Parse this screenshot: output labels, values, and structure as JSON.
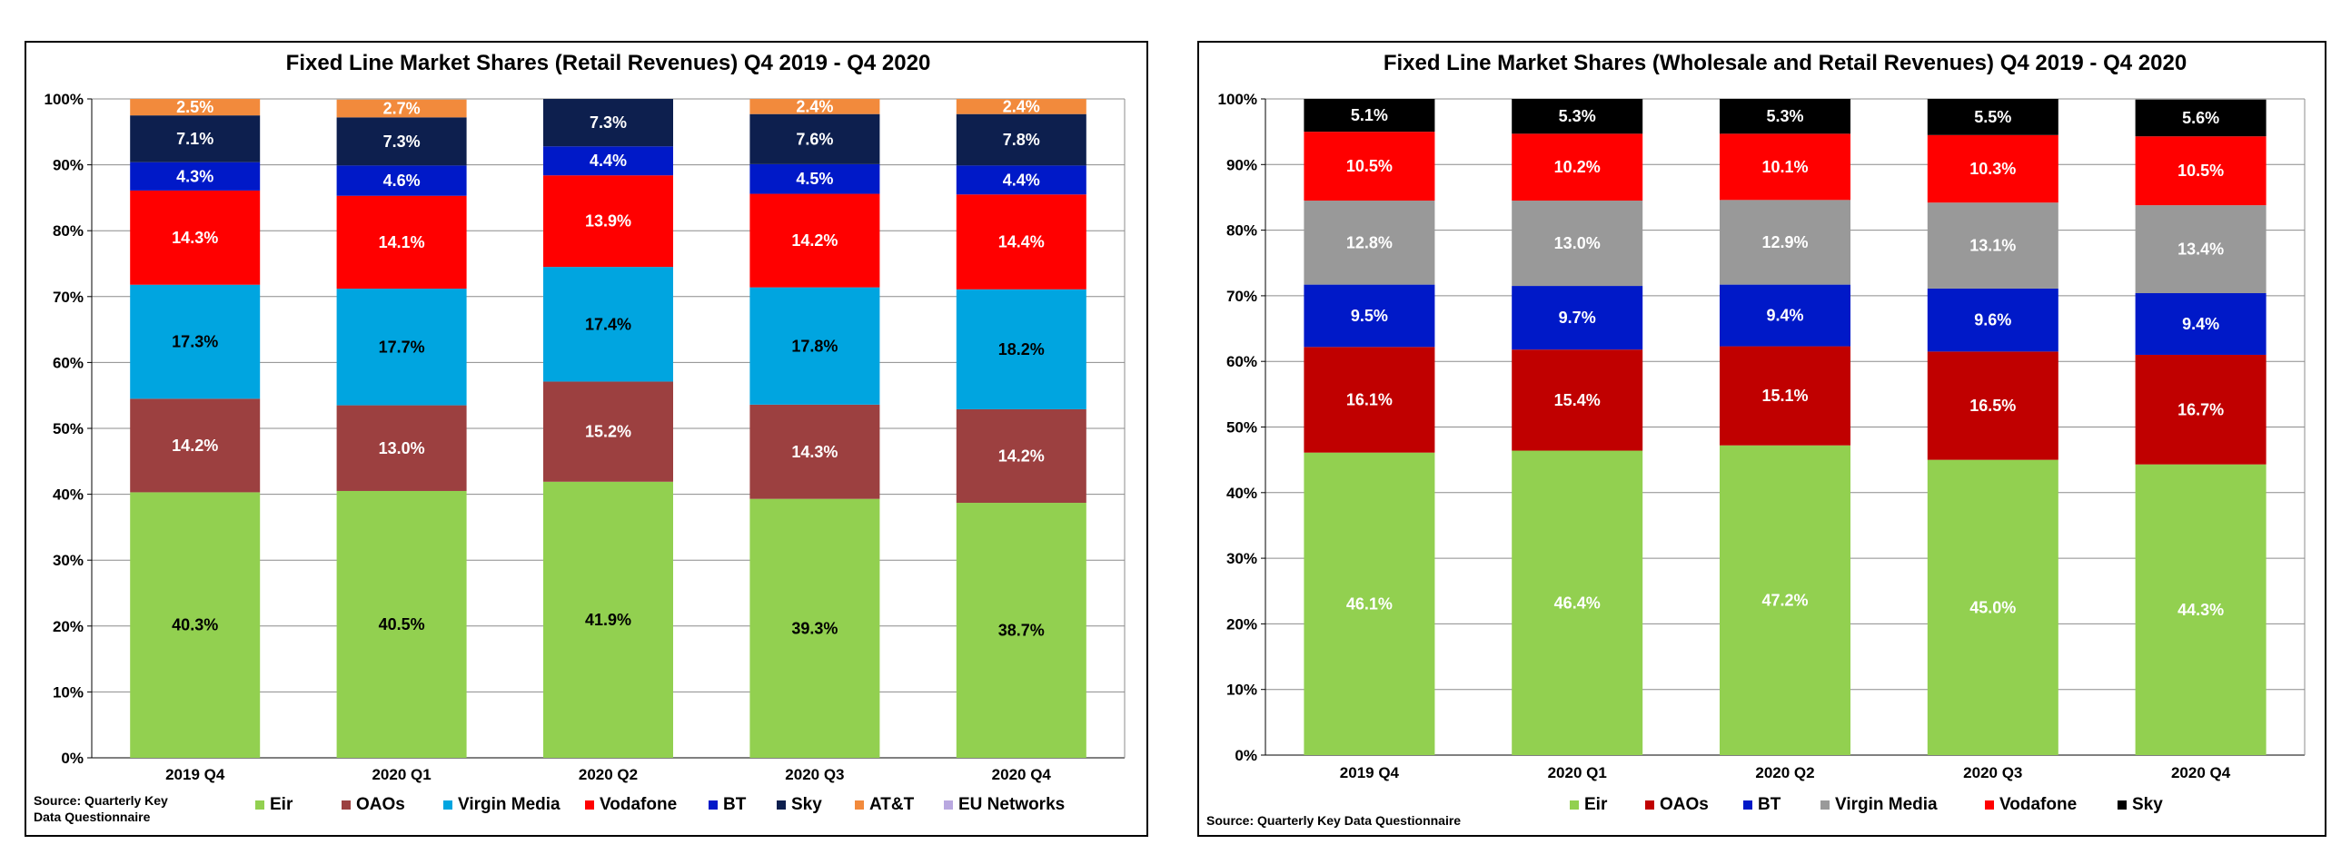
{
  "chart_data": [
    {
      "type": "bar",
      "stacked": true,
      "title": "Fixed Line Market Shares (Retail Revenues) Q4 2019 - Q4 2020",
      "categories": [
        "2019 Q4",
        "2020 Q1",
        "2020 Q2",
        "2020 Q3",
        "2020 Q4"
      ],
      "ylim": [
        0,
        100
      ],
      "yticks": [
        "0%",
        "10%",
        "20%",
        "30%",
        "40%",
        "50%",
        "60%",
        "70%",
        "80%",
        "90%",
        "100%"
      ],
      "grid": true,
      "legend_position": "bottom",
      "source": [
        "Source: Quarterly Key",
        "Data Questionnaire"
      ],
      "series": [
        {
          "name": "Eir",
          "color": "#92D050",
          "label_color": "#000000",
          "values": [
            40.3,
            40.5,
            41.9,
            39.3,
            38.7
          ],
          "labels": [
            "40.3%",
            "40.5%",
            "41.9%",
            "39.3%",
            "38.7%"
          ]
        },
        {
          "name": "OAOs",
          "color": "#9C4040",
          "label_color": "#FFFFFF",
          "values": [
            14.2,
            13.0,
            15.2,
            14.3,
            14.2
          ],
          "labels": [
            "14.2%",
            "13.0%",
            "15.2%",
            "14.3%",
            "14.2%"
          ]
        },
        {
          "name": "Virgin Media",
          "color": "#00A5E0",
          "label_color": "#000000",
          "values": [
            17.3,
            17.7,
            17.4,
            17.8,
            18.2
          ],
          "labels": [
            "17.3%",
            "17.7%",
            "17.4%",
            "17.8%",
            "18.2%"
          ]
        },
        {
          "name": "Vodafone",
          "color": "#FF0000",
          "label_color": "#FFFFFF",
          "values": [
            14.3,
            14.1,
            13.9,
            14.2,
            14.4
          ],
          "labels": [
            "14.3%",
            "14.1%",
            "13.9%",
            "14.2%",
            "14.4%"
          ]
        },
        {
          "name": "BT",
          "color": "#0019C8",
          "label_color": "#FFFFFF",
          "values": [
            4.3,
            4.6,
            4.4,
            4.5,
            4.4
          ],
          "labels": [
            "4.3%",
            "4.6%",
            "4.4%",
            "4.5%",
            "4.4%"
          ]
        },
        {
          "name": "Sky",
          "color": "#0D1F4E",
          "label_color": "#FFFFFF",
          "values": [
            7.1,
            7.3,
            7.3,
            7.6,
            7.8
          ],
          "labels": [
            "7.1%",
            "7.3%",
            "7.3%",
            "7.6%",
            "7.8%"
          ]
        },
        {
          "name": "AT&T",
          "color": "#F28A3C",
          "label_color": "#FFFFFF",
          "values": [
            2.5,
            2.7,
            0,
            2.4,
            2.4
          ],
          "labels": [
            "2.5%",
            "2.7%",
            "",
            "2.4%",
            "2.4%"
          ]
        },
        {
          "name": "EU Networks",
          "color": "#B9A8E0",
          "label_color": "#FFFFFF",
          "values": [
            0,
            0,
            0,
            0,
            0
          ],
          "labels": [
            "",
            "",
            "",
            "",
            ""
          ]
        }
      ]
    },
    {
      "type": "bar",
      "stacked": true,
      "title": "Fixed Line Market Shares (Wholesale and Retail Revenues) Q4 2019 - Q4 2020",
      "categories": [
        "2019 Q4",
        "2020 Q1",
        "2020 Q2",
        "2020 Q3",
        "2020 Q4"
      ],
      "ylim": [
        0,
        100
      ],
      "yticks": [
        "0%",
        "10%",
        "20%",
        "30%",
        "40%",
        "50%",
        "60%",
        "70%",
        "80%",
        "90%",
        "100%"
      ],
      "grid": true,
      "legend_position": "bottom",
      "source": [
        "Source: Quarterly Key Data Questionnaire"
      ],
      "series": [
        {
          "name": "Eir",
          "color": "#92D050",
          "label_color": "#FFFFFF",
          "values": [
            46.1,
            46.4,
            47.2,
            45.0,
            44.3
          ],
          "labels": [
            "46.1%",
            "46.4%",
            "47.2%",
            "45.0%",
            "44.3%"
          ]
        },
        {
          "name": "OAOs",
          "color": "#C00000",
          "label_color": "#FFFFFF",
          "values": [
            16.1,
            15.4,
            15.1,
            16.5,
            16.7
          ],
          "labels": [
            "16.1%",
            "15.4%",
            "15.1%",
            "16.5%",
            "16.7%"
          ]
        },
        {
          "name": "BT",
          "color": "#0019C8",
          "label_color": "#FFFFFF",
          "values": [
            9.5,
            9.7,
            9.4,
            9.6,
            9.4
          ],
          "labels": [
            "9.5%",
            "9.7%",
            "9.4%",
            "9.6%",
            "9.4%"
          ]
        },
        {
          "name": "Virgin Media",
          "color": "#999999",
          "label_color": "#FFFFFF",
          "values": [
            12.8,
            13.0,
            12.9,
            13.1,
            13.4
          ],
          "labels": [
            "12.8%",
            "13.0%",
            "12.9%",
            "13.1%",
            "13.4%"
          ]
        },
        {
          "name": "Vodafone",
          "color": "#FF0000",
          "label_color": "#FFFFFF",
          "values": [
            10.5,
            10.2,
            10.1,
            10.3,
            10.5
          ],
          "labels": [
            "10.5%",
            "10.2%",
            "10.1%",
            "10.3%",
            "10.5%"
          ]
        },
        {
          "name": "Sky",
          "color": "#000000",
          "label_color": "#FFFFFF",
          "values": [
            5.1,
            5.3,
            5.3,
            5.5,
            5.6
          ],
          "labels": [
            "5.1%",
            "5.3%",
            "5.3%",
            "5.5%",
            "5.6%"
          ]
        }
      ]
    }
  ]
}
